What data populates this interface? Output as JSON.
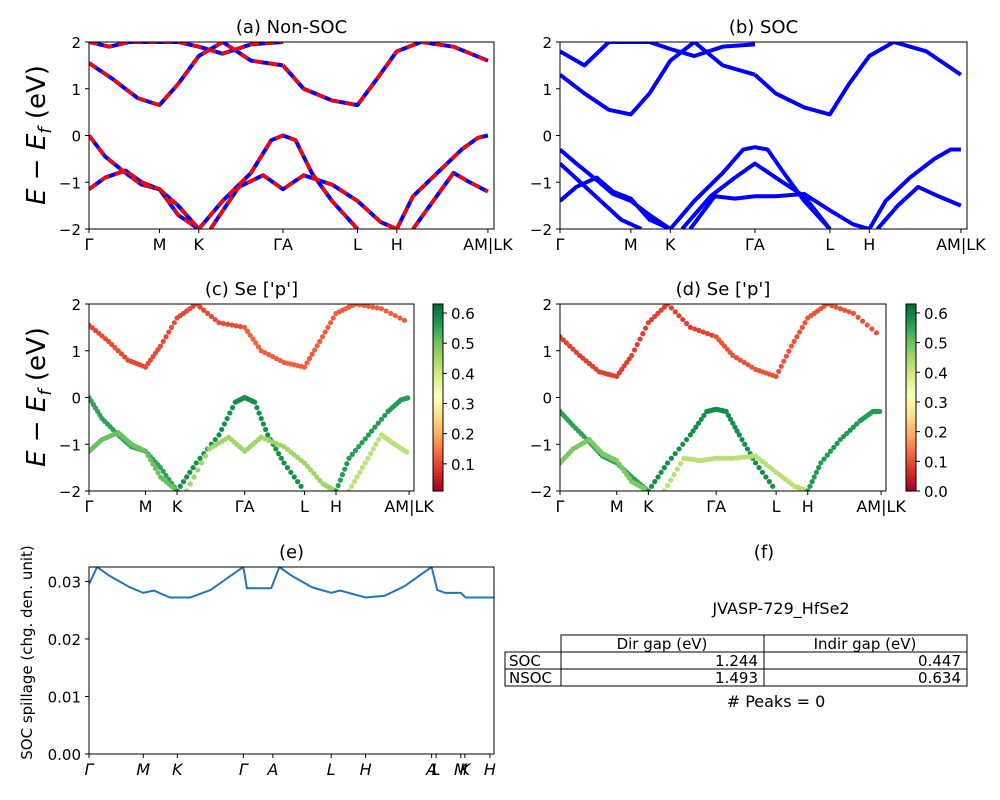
{
  "figure": {
    "band_ylabel": "E − E_f (eV)",
    "band_ylabel_main": "E − E",
    "band_ylabel_sub": "f",
    "band_ylabel_unit": " (eV)"
  },
  "chart_data": [
    {
      "id": "a",
      "type": "line",
      "title": "(a) Non-SOC",
      "ylim": [
        -2,
        2
      ],
      "yticks": [
        -2,
        -1,
        0,
        1,
        2
      ],
      "kpath": [
        "Γ",
        "M",
        "K",
        "ΓA",
        "L",
        "H",
        "AM|LK"
      ],
      "kpath_positions": [
        0,
        0.174,
        0.271,
        0.479,
        0.663,
        0.76,
        0.985
      ],
      "series": [
        {
          "color": "#0000ff",
          "style": "solid"
        },
        {
          "color": "#ff0000",
          "style": "dashed"
        }
      ],
      "bands": [
        {
          "x": [
            0,
            0.06,
            0.12,
            0.174,
            0.22,
            0.271,
            0.33,
            0.4,
            0.479
          ],
          "y": [
            1.55,
            1.2,
            0.8,
            0.65,
            1.1,
            1.7,
            2.0,
            1.6,
            1.5
          ]
        },
        {
          "x": [
            0,
            0.05,
            0.1,
            0.174,
            0.22,
            0.271,
            0.33,
            0.4,
            0.479
          ],
          "y": [
            2.0,
            1.9,
            2.0,
            2.0,
            2.0,
            1.9,
            1.75,
            1.95,
            2.0
          ]
        },
        {
          "x": [
            0.479,
            0.53,
            0.6,
            0.663,
            0.71,
            0.76,
            0.82,
            0.9,
            0.985
          ],
          "y": [
            1.5,
            1.0,
            0.75,
            0.65,
            1.2,
            1.8,
            2.0,
            1.9,
            1.6
          ]
        },
        {
          "x": [
            0,
            0.04,
            0.09,
            0.13,
            0.174,
            0.22,
            0.271
          ],
          "y": [
            0.0,
            -0.45,
            -0.8,
            -1.05,
            -1.15,
            -1.5,
            -2.0
          ]
        },
        {
          "x": [
            0,
            0.04,
            0.09,
            0.13,
            0.174,
            0.22,
            0.271
          ],
          "y": [
            -1.15,
            -0.9,
            -0.75,
            -1.0,
            -1.15,
            -1.7,
            -2.0
          ]
        },
        {
          "x": [
            0.271,
            0.33,
            0.4,
            0.45,
            0.479,
            0.51,
            0.55,
            0.6,
            0.663
          ],
          "y": [
            -2.0,
            -1.4,
            -0.8,
            -0.1,
            0.0,
            -0.1,
            -0.8,
            -1.4,
            -2.0
          ]
        },
        {
          "x": [
            0.3,
            0.37,
            0.43,
            0.479,
            0.53,
            0.6,
            0.663,
            0.72,
            0.76
          ],
          "y": [
            -2.0,
            -1.1,
            -0.85,
            -1.15,
            -0.85,
            -1.05,
            -1.4,
            -1.85,
            -2.0
          ]
        },
        {
          "x": [
            0.76,
            0.8,
            0.86,
            0.92,
            0.96,
            0.985
          ],
          "y": [
            -2.0,
            -1.3,
            -0.8,
            -0.3,
            -0.05,
            0.0
          ]
        },
        {
          "x": [
            0.8,
            0.85,
            0.9,
            0.94,
            0.985
          ],
          "y": [
            -2.0,
            -1.4,
            -0.8,
            -1.0,
            -1.2
          ]
        }
      ]
    },
    {
      "id": "b",
      "type": "line",
      "title": "(b) SOC",
      "ylim": [
        -2,
        2
      ],
      "yticks": [
        -2,
        -1,
        0,
        1,
        2
      ],
      "kpath": [
        "Γ",
        "M",
        "K",
        "ΓA",
        "L",
        "H",
        "AM|LK"
      ],
      "kpath_positions": [
        0,
        0.174,
        0.271,
        0.479,
        0.663,
        0.76,
        0.985
      ],
      "series": [
        {
          "color": "#0000ff",
          "style": "solid"
        }
      ],
      "bands": [
        {
          "x": [
            0,
            0.06,
            0.12,
            0.174,
            0.22,
            0.271,
            0.33,
            0.4,
            0.479
          ],
          "y": [
            1.3,
            0.9,
            0.55,
            0.45,
            0.9,
            1.6,
            2.0,
            1.5,
            1.3
          ]
        },
        {
          "x": [
            0,
            0.06,
            0.12,
            0.174,
            0.22,
            0.271,
            0.33,
            0.4,
            0.479
          ],
          "y": [
            1.8,
            1.5,
            2.0,
            2.0,
            2.0,
            1.85,
            1.7,
            1.9,
            1.95
          ]
        },
        {
          "x": [
            0.479,
            0.53,
            0.6,
            0.663,
            0.71,
            0.76,
            0.82,
            0.9,
            0.985
          ],
          "y": [
            1.3,
            0.9,
            0.6,
            0.45,
            1.1,
            1.7,
            2.0,
            1.8,
            1.3
          ]
        },
        {
          "x": [
            0,
            0.04,
            0.09,
            0.13,
            0.174,
            0.22,
            0.271
          ],
          "y": [
            -0.3,
            -0.6,
            -0.95,
            -1.25,
            -1.4,
            -1.7,
            -2.0
          ]
        },
        {
          "x": [
            0,
            0.04,
            0.09,
            0.13,
            0.174,
            0.22,
            0.271
          ],
          "y": [
            -1.4,
            -1.1,
            -0.9,
            -1.2,
            -1.35,
            -1.8,
            -2.0
          ]
        },
        {
          "x": [
            0,
            0.05,
            0.1,
            0.15,
            0.2
          ],
          "y": [
            -0.6,
            -1.0,
            -1.4,
            -1.8,
            -2.0
          ]
        },
        {
          "x": [
            0.271,
            0.33,
            0.4,
            0.45,
            0.479,
            0.51,
            0.55,
            0.6,
            0.663
          ],
          "y": [
            -2.0,
            -1.4,
            -0.8,
            -0.3,
            -0.25,
            -0.3,
            -0.8,
            -1.4,
            -2.0
          ]
        },
        {
          "x": [
            0.3,
            0.37,
            0.43,
            0.479,
            0.53,
            0.6,
            0.663
          ],
          "y": [
            -2.0,
            -1.3,
            -0.9,
            -0.6,
            -0.9,
            -1.3,
            -2.0
          ]
        },
        {
          "x": [
            0.32,
            0.38,
            0.43,
            0.479,
            0.53,
            0.6,
            0.663,
            0.72,
            0.76
          ],
          "y": [
            -2.0,
            -1.3,
            -1.35,
            -1.3,
            -1.3,
            -1.25,
            -1.6,
            -1.9,
            -2.0
          ]
        },
        {
          "x": [
            0.76,
            0.8,
            0.86,
            0.92,
            0.96,
            0.985
          ],
          "y": [
            -2.0,
            -1.4,
            -0.9,
            -0.5,
            -0.3,
            -0.3
          ]
        },
        {
          "x": [
            0.78,
            0.83,
            0.88,
            0.93,
            0.985
          ],
          "y": [
            -2.0,
            -1.5,
            -1.1,
            -1.3,
            -1.5
          ]
        }
      ]
    },
    {
      "id": "c",
      "type": "scatter",
      "title": "(c)  Se ['p']",
      "ylim": [
        -2,
        2
      ],
      "yticks": [
        -2,
        -1,
        0,
        1,
        2
      ],
      "kpath": [
        "Γ",
        "M",
        "K",
        "ΓA",
        "L",
        "H",
        "AM|LK"
      ],
      "kpath_positions": [
        0,
        0.174,
        0.271,
        0.479,
        0.663,
        0.76,
        0.985
      ],
      "colorbar": {
        "ticks": [
          0.1,
          0.2,
          0.3,
          0.4,
          0.5,
          0.6
        ],
        "range": [
          0.01,
          0.63
        ],
        "colormap": "RdYlGn"
      },
      "bands": [
        {
          "x": [
            0,
            0.06,
            0.12,
            0.174,
            0.22,
            0.271,
            0.33,
            0.4,
            0.479
          ],
          "y": [
            1.55,
            1.2,
            0.8,
            0.65,
            1.1,
            1.7,
            2.0,
            1.6,
            1.5
          ],
          "w": 0.1
        },
        {
          "x": [
            0.479,
            0.53,
            0.6,
            0.663,
            0.71,
            0.76,
            0.82,
            0.9,
            0.985
          ],
          "y": [
            1.5,
            1.0,
            0.75,
            0.65,
            1.2,
            1.8,
            2.0,
            1.9,
            1.6
          ],
          "w": 0.12
        },
        {
          "x": [
            0,
            0.04,
            0.09,
            0.13,
            0.174,
            0.22,
            0.271
          ],
          "y": [
            0.0,
            -0.45,
            -0.8,
            -1.05,
            -1.15,
            -1.5,
            -2.0
          ],
          "w": 0.55
        },
        {
          "x": [
            0,
            0.04,
            0.09,
            0.13,
            0.174,
            0.22,
            0.271
          ],
          "y": [
            -1.15,
            -0.9,
            -0.75,
            -1.0,
            -1.15,
            -1.7,
            -2.0
          ],
          "w": 0.5
        },
        {
          "x": [
            0.271,
            0.33,
            0.4,
            0.45,
            0.479,
            0.51,
            0.55,
            0.6,
            0.663
          ],
          "y": [
            -2.0,
            -1.4,
            -0.8,
            -0.1,
            0.0,
            -0.1,
            -0.8,
            -1.4,
            -2.0
          ],
          "w": 0.58
        },
        {
          "x": [
            0.3,
            0.37,
            0.43,
            0.479,
            0.53,
            0.6,
            0.663,
            0.72,
            0.76
          ],
          "y": [
            -2.0,
            -1.1,
            -0.85,
            -1.15,
            -0.85,
            -1.05,
            -1.4,
            -1.85,
            -2.0
          ],
          "w": 0.45
        },
        {
          "x": [
            0.76,
            0.8,
            0.86,
            0.92,
            0.96,
            0.985
          ],
          "y": [
            -2.0,
            -1.3,
            -0.8,
            -0.3,
            -0.05,
            0.0
          ],
          "w": 0.56
        },
        {
          "x": [
            0.8,
            0.85,
            0.9,
            0.94,
            0.985
          ],
          "y": [
            -2.0,
            -1.4,
            -0.8,
            -1.0,
            -1.2
          ],
          "w": 0.42
        }
      ]
    },
    {
      "id": "d",
      "type": "scatter",
      "title": "(d) Se ['p']",
      "ylim": [
        -2,
        2
      ],
      "yticks": [
        -2,
        -1,
        0,
        1,
        2
      ],
      "kpath": [
        "Γ",
        "M",
        "K",
        "ΓA",
        "L",
        "H",
        "AM|LK"
      ],
      "kpath_positions": [
        0,
        0.174,
        0.271,
        0.479,
        0.663,
        0.76,
        0.985
      ],
      "colorbar": {
        "ticks": [
          0.0,
          0.1,
          0.2,
          0.3,
          0.4,
          0.5,
          0.6
        ],
        "range": [
          0.0,
          0.63
        ],
        "colormap": "RdYlGn"
      },
      "bands": [
        {
          "x": [
            0,
            0.06,
            0.12,
            0.174,
            0.22,
            0.271,
            0.33,
            0.4,
            0.479
          ],
          "y": [
            1.3,
            0.9,
            0.55,
            0.45,
            0.9,
            1.6,
            2.0,
            1.5,
            1.3
          ],
          "w": 0.08
        },
        {
          "x": [
            0.479,
            0.53,
            0.6,
            0.663,
            0.71,
            0.76,
            0.82,
            0.9,
            0.985
          ],
          "y": [
            1.3,
            0.9,
            0.6,
            0.45,
            1.1,
            1.7,
            2.0,
            1.8,
            1.3
          ],
          "w": 0.1
        },
        {
          "x": [
            0,
            0.04,
            0.09,
            0.13,
            0.174,
            0.22,
            0.271
          ],
          "y": [
            -0.3,
            -0.6,
            -0.95,
            -1.25,
            -1.4,
            -1.7,
            -2.0
          ],
          "w": 0.55
        },
        {
          "x": [
            0,
            0.04,
            0.09,
            0.13,
            0.174,
            0.22,
            0.271
          ],
          "y": [
            -1.4,
            -1.1,
            -0.9,
            -1.2,
            -1.35,
            -1.8,
            -2.0
          ],
          "w": 0.48
        },
        {
          "x": [
            0.271,
            0.33,
            0.4,
            0.45,
            0.479,
            0.51,
            0.55,
            0.6,
            0.663
          ],
          "y": [
            -2.0,
            -1.4,
            -0.8,
            -0.3,
            -0.25,
            -0.3,
            -0.8,
            -1.4,
            -2.0
          ],
          "w": 0.58
        },
        {
          "x": [
            0.32,
            0.38,
            0.43,
            0.479,
            0.53,
            0.6,
            0.663,
            0.72,
            0.76
          ],
          "y": [
            -2.0,
            -1.3,
            -1.35,
            -1.3,
            -1.3,
            -1.25,
            -1.6,
            -1.9,
            -2.0
          ],
          "w": 0.42
        },
        {
          "x": [
            0.76,
            0.8,
            0.86,
            0.92,
            0.96,
            0.985
          ],
          "y": [
            -2.0,
            -1.4,
            -0.9,
            -0.5,
            -0.3,
            -0.3
          ],
          "w": 0.56
        }
      ]
    },
    {
      "id": "e",
      "type": "line",
      "title": "(e)",
      "ylabel": "SOC spillage (chg. den. unit)",
      "ylim": [
        0,
        0.0325
      ],
      "yticks": [
        0.0,
        0.01,
        0.02,
        0.03
      ],
      "ytick_labels": [
        "0.00",
        "0.01",
        "0.02",
        "0.03"
      ],
      "kpath": [
        "Γ",
        "M",
        "K",
        "Γ",
        "A",
        "L",
        "H",
        "A",
        "L",
        "M",
        "K",
        "H"
      ],
      "kpath_positions": [
        0,
        0.134,
        0.218,
        0.381,
        0.454,
        0.598,
        0.683,
        0.846,
        0.857,
        0.918,
        0.928,
        0.99
      ],
      "series": [
        {
          "color": "#1f77b4",
          "x": [
            0,
            0.02,
            0.05,
            0.1,
            0.134,
            0.16,
            0.2,
            0.25,
            0.3,
            0.35,
            0.381,
            0.39,
            0.45,
            0.47,
            0.5,
            0.55,
            0.598,
            0.62,
            0.683,
            0.73,
            0.78,
            0.82,
            0.846,
            0.86,
            0.88,
            0.918,
            0.93,
            0.96,
            1.0
          ],
          "y": [
            0.0295,
            0.0325,
            0.031,
            0.029,
            0.028,
            0.0284,
            0.0272,
            0.0272,
            0.0285,
            0.031,
            0.0325,
            0.0288,
            0.0288,
            0.0325,
            0.031,
            0.029,
            0.028,
            0.0284,
            0.0272,
            0.0275,
            0.0292,
            0.0312,
            0.0325,
            0.0285,
            0.028,
            0.028,
            0.0272,
            0.0272,
            0.0272
          ]
        }
      ]
    },
    {
      "id": "f",
      "type": "table",
      "title": "(f)",
      "caption": "JVASP-729_HfSe2",
      "columns": [
        "",
        "Dir gap (eV)",
        "Indir gap (eV)"
      ],
      "rows": [
        {
          "label": "SOC",
          "dir": "1.244",
          "indir": "0.447"
        },
        {
          "label": "NSOC",
          "dir": "1.493",
          "indir": "0.634"
        }
      ],
      "footer": "# Peaks = 0"
    }
  ]
}
